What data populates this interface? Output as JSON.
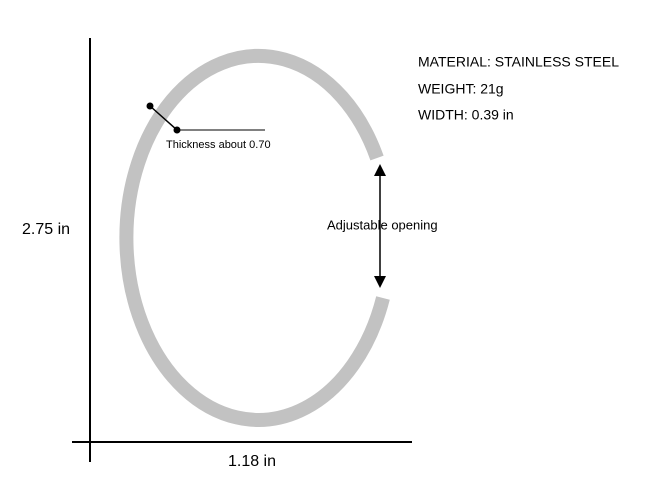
{
  "specs": {
    "material": "MATERIAL: STAINLESS STEEL",
    "weight": "WEIGHT: 21g",
    "width": "WIDTH: 0.39 in"
  },
  "dimensions": {
    "height": "2.75 in",
    "width": "1.18 in"
  },
  "annotations": {
    "thickness": "Thickness about 0.70",
    "opening": "Adjustable opening"
  }
}
